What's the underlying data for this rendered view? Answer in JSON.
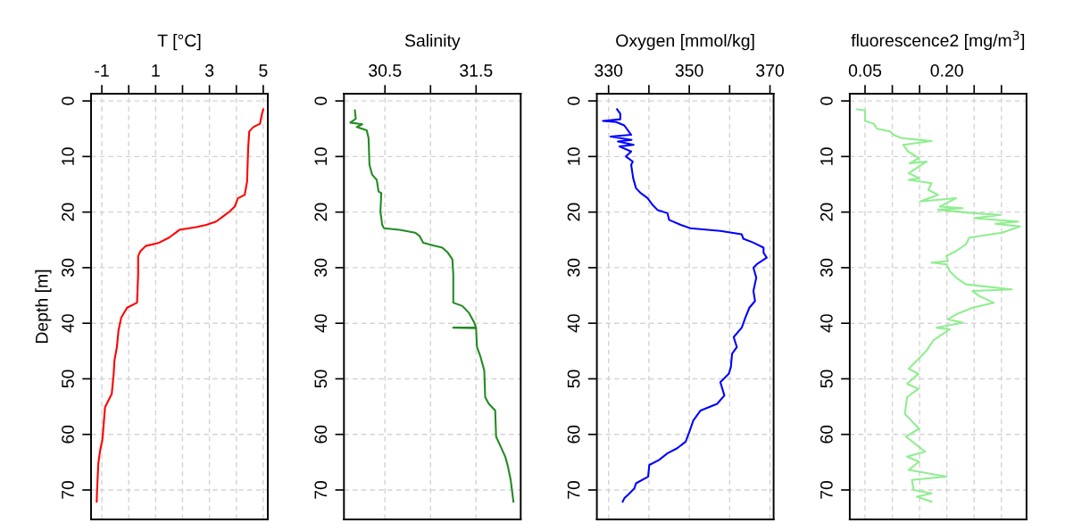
{
  "chart_data": [
    {
      "type": "line",
      "xlabel": "T [°C]",
      "ylabel": "Depth [m]",
      "xlim": [
        -1.4,
        5.17
      ],
      "xticks": [
        -1,
        {
          "value": 0,
          "label": null
        },
        1,
        {
          "value": 2,
          "label": null
        },
        3,
        {
          "value": 4,
          "label": null
        },
        5
      ],
      "ylim": [
        75.3,
        -1.3
      ],
      "yticks": [
        0,
        10,
        20,
        30,
        40,
        50,
        60,
        70
      ],
      "grid": true,
      "series": [
        {
          "color": "#ff0000",
          "x": [
            5.0,
            4.94,
            4.88,
            4.63,
            4.48,
            4.44,
            4.4,
            4.31,
            4.06,
            3.94,
            3.75,
            3.5,
            3.25,
            2.88,
            2.5,
            1.88,
            1.75,
            1.5,
            1.13,
            0.63,
            0.44,
            0.35,
            0.35,
            0.31,
            -0.06,
            -0.28,
            -0.38,
            -0.44,
            -0.53,
            -0.56,
            -0.63,
            -0.88,
            -0.94,
            -0.98,
            -1.06,
            -1.13,
            -1.18,
            -1.19
          ],
          "values": [
            1.5,
            2.6,
            4.1,
            4.7,
            5.5,
            8.5,
            14.5,
            16.9,
            17.5,
            19.0,
            19.9,
            20.8,
            21.7,
            22.3,
            22.7,
            23.2,
            23.7,
            24.6,
            25.5,
            26.1,
            27.0,
            27.9,
            31.2,
            36.3,
            37.2,
            39.0,
            41.3,
            44.3,
            46.7,
            49.1,
            52.7,
            55.1,
            58.7,
            61.0,
            62.8,
            65.2,
            70.6,
            72.1
          ]
        }
      ]
    },
    {
      "type": "line",
      "xlabel": "Salinity",
      "xlim": [
        30.05,
        31.99
      ],
      "xticks": [
        30.5,
        {
          "value": 31.0,
          "label": null
        },
        31.5
      ],
      "ylim": [
        75.3,
        -1.3
      ],
      "yticks": [
        0,
        10,
        20,
        30,
        40,
        50,
        60,
        70
      ],
      "grid": true,
      "series": [
        {
          "color": "#228b22",
          "x": [
            30.17,
            30.18,
            30.12,
            30.25,
            30.19,
            30.3,
            30.32,
            30.33,
            30.36,
            30.41,
            30.43,
            30.46,
            30.45,
            30.47,
            30.49,
            30.66,
            30.83,
            30.88,
            30.92,
            31.03,
            31.13,
            31.19,
            31.24,
            31.25,
            31.25,
            31.35,
            31.42,
            31.48,
            31.5,
            31.25,
            31.5,
            31.51,
            31.55,
            31.59,
            31.6,
            31.64,
            31.71,
            31.72,
            31.77,
            31.82,
            31.85,
            31.88,
            31.91
          ],
          "values": [
            1.7,
            3.2,
            3.9,
            4.2,
            4.7,
            5.3,
            6.7,
            11.5,
            13.3,
            14.2,
            16.3,
            16.6,
            19.9,
            22.3,
            22.9,
            23.2,
            23.7,
            24.3,
            25.5,
            26.0,
            26.4,
            27.3,
            28.5,
            31.2,
            36.3,
            36.9,
            38.1,
            39.9,
            40.8,
            40.8,
            40.9,
            44.3,
            46.1,
            48.5,
            53.3,
            54.5,
            55.7,
            60.4,
            62.2,
            64.0,
            65.8,
            68.2,
            72.1
          ]
        }
      ]
    },
    {
      "type": "line",
      "xlabel": "Oxygen [mmol/kg]",
      "xlim": [
        327.1,
        370.9
      ],
      "xticks": [
        330,
        {
          "value": 340,
          "label": null
        },
        350,
        {
          "value": 360,
          "label": null
        },
        370
      ],
      "ylim": [
        75.3,
        -1.3
      ],
      "yticks": [
        0,
        10,
        20,
        30,
        40,
        50,
        60,
        70
      ],
      "grid": true,
      "series": [
        {
          "color": "#0000ff",
          "x": [
            332.1,
            332.9,
            332.9,
            328.6,
            331.9,
            333.9,
            334.8,
            335.6,
            330.5,
            335.7,
            332.3,
            336.2,
            332.7,
            335.6,
            334.3,
            336.0,
            335.6,
            336.1,
            336.8,
            338.0,
            339.7,
            340.9,
            342.1,
            344.6,
            345.0,
            347.9,
            350.3,
            357.7,
            363.0,
            363.4,
            365.9,
            368.4,
            368.4,
            369.2,
            366.7,
            365.9,
            366.6,
            365.9,
            366.3,
            364.9,
            363.9,
            363.0,
            361.0,
            361.8,
            360.6,
            360.3,
            359.8,
            357.7,
            358.7,
            356.9,
            352.8,
            351.0,
            349.9,
            349.1,
            347.0,
            344.6,
            342.5,
            340.1,
            339.8,
            336.8,
            336.4,
            335.2,
            333.9,
            333.5
          ],
          "values": [
            1.5,
            2.3,
            3.3,
            3.6,
            3.8,
            4.4,
            5.3,
            6.1,
            6.4,
            7.0,
            7.3,
            7.9,
            8.2,
            9.1,
            10.0,
            10.9,
            11.5,
            13.9,
            15.7,
            16.6,
            17.5,
            18.7,
            19.6,
            20.2,
            21.4,
            22.3,
            22.9,
            23.4,
            24.0,
            24.8,
            25.5,
            26.4,
            27.3,
            28.2,
            29.4,
            30.0,
            31.8,
            34.2,
            36.0,
            37.2,
            39.0,
            40.8,
            42.5,
            44.3,
            45.5,
            47.9,
            49.1,
            50.6,
            53.0,
            54.5,
            55.7,
            57.5,
            59.8,
            61.3,
            62.5,
            63.4,
            64.6,
            65.5,
            67.6,
            68.8,
            69.7,
            70.6,
            71.5,
            72.1
          ]
        }
      ]
    },
    {
      "type": "line",
      "xlabel": "fluorescence2 [mg/m$^{3}$]",
      "xlim": [
        0.022,
        0.346
      ],
      "xticks": [
        0.05,
        {
          "value": 0.1,
          "label": null
        },
        {
          "value": 0.15,
          "label": null
        },
        {
          "value": 0.2,
          "label": "0.20"
        },
        {
          "value": 0.25,
          "label": null
        },
        {
          "value": 0.3,
          "label": null
        }
      ],
      "ylim": [
        75.3,
        -1.3
      ],
      "yticks": [
        0,
        10,
        20,
        30,
        40,
        50,
        60,
        70
      ],
      "grid": true,
      "series": [
        {
          "color": "#90ee90",
          "x": [
            0.035,
            0.05,
            0.05,
            0.066,
            0.072,
            0.096,
            0.102,
            0.117,
            0.172,
            0.12,
            0.129,
            0.149,
            0.132,
            0.163,
            0.13,
            0.149,
            0.13,
            0.172,
            0.166,
            0.184,
            0.151,
            0.217,
            0.187,
            0.229,
            0.184,
            0.25,
            0.298,
            0.25,
            0.331,
            0.289,
            0.334,
            0.301,
            0.241,
            0.235,
            0.217,
            0.199,
            0.202,
            0.172,
            0.199,
            0.205,
            0.217,
            0.235,
            0.319,
            0.247,
            0.259,
            0.286,
            0.247,
            0.217,
            0.202,
            0.229,
            0.181,
            0.205,
            0.175,
            0.163,
            0.151,
            0.13,
            0.148,
            0.127,
            0.148,
            0.127,
            0.123,
            0.149,
            0.125,
            0.16,
            0.127,
            0.149,
            0.13,
            0.199,
            0.136,
            0.139,
            0.172,
            0.145,
            0.172
          ],
          "values": [
            1.5,
            1.7,
            3.6,
            4.1,
            5.0,
            5.5,
            6.1,
            6.7,
            7.2,
            7.9,
            9.1,
            10.3,
            11.2,
            10.9,
            13.0,
            13.9,
            14.2,
            14.8,
            16.0,
            16.9,
            18.1,
            17.5,
            19.0,
            19.3,
            19.6,
            20.2,
            20.5,
            21.1,
            21.7,
            22.1,
            22.6,
            23.7,
            24.6,
            25.8,
            27.0,
            27.9,
            28.8,
            29.1,
            29.4,
            30.6,
            31.8,
            33.0,
            33.9,
            34.2,
            35.1,
            36.3,
            37.2,
            38.4,
            39.3,
            39.9,
            40.8,
            41.1,
            43.1,
            44.9,
            46.1,
            48.2,
            49.1,
            50.9,
            51.8,
            53.3,
            56.3,
            59.0,
            60.4,
            63.1,
            64.0,
            64.9,
            66.4,
            67.6,
            68.2,
            70.0,
            70.6,
            71.2,
            72.1
          ]
        }
      ]
    }
  ]
}
